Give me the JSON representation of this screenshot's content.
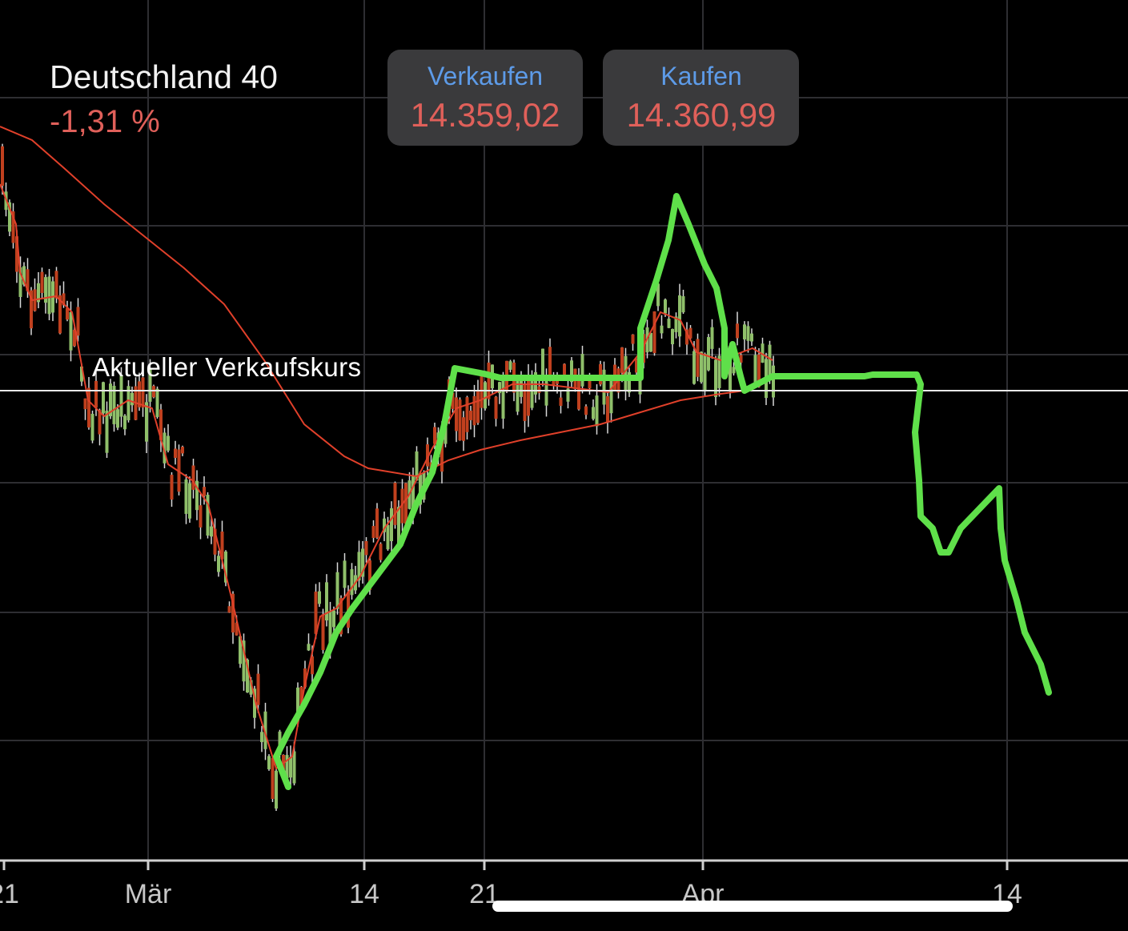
{
  "header": {
    "title": "Deutschland 40",
    "change": "-1,31 %"
  },
  "buttons": [
    {
      "label": "Verkaufen",
      "price": "14.359,02"
    },
    {
      "label": "Kaufen",
      "price": "14.360,99"
    }
  ],
  "price_line": {
    "label": "Aktueller Verkaufskurs"
  },
  "x_axis": {
    "labels": [
      "21",
      "Mär",
      "14",
      "21",
      "Apr",
      "14"
    ]
  }
}
